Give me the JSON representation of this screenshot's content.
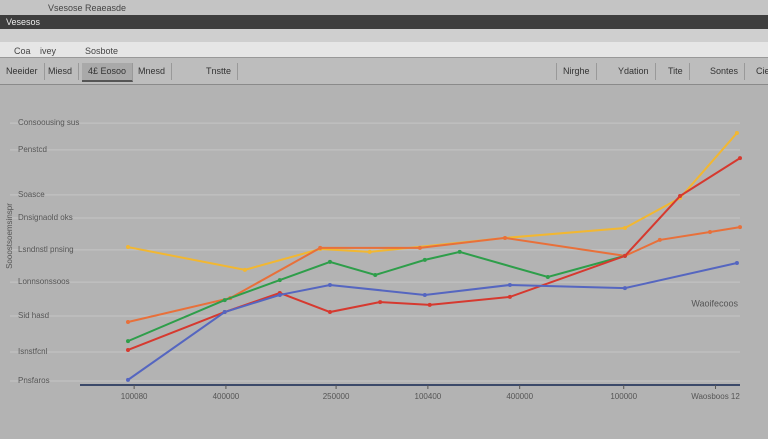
{
  "window": {
    "title": "Vsesose Reaeasde",
    "menu": "Vesesos"
  },
  "address": [
    "Coa",
    "ivey",
    "Sosbote"
  ],
  "tabs": [
    "Neeider",
    "Miesd",
    "4£ Eosoo",
    "Mnesd",
    "Tnstte",
    "Nirghe",
    "Ydation",
    "Tite",
    "Sontes",
    "Cie"
  ],
  "chart_data": {
    "type": "line",
    "y_label": "Sooostsoemsinspr",
    "annotation": "Waoifecoos",
    "xlim": [
      0,
      100
    ],
    "ylim": [
      0,
      100
    ],
    "grid": true,
    "xticks": [
      {
        "value": 1,
        "label": "100080"
      },
      {
        "value": 16,
        "label": "400000"
      },
      {
        "value": 34,
        "label": "250000"
      },
      {
        "value": 49,
        "label": "100400"
      },
      {
        "value": 64,
        "label": "400000"
      },
      {
        "value": 81,
        "label": "100000"
      },
      {
        "value": 96,
        "label": "Waosboos 12"
      }
    ],
    "yticks": [
      {
        "value": 91.9,
        "label": "Consoousing sus"
      },
      {
        "value": 82.5,
        "label": "Penstcd"
      },
      {
        "value": 66.7,
        "label": "Soasce"
      },
      {
        "value": 58.6,
        "label": "Dnsignaold oks"
      },
      {
        "value": 47.4,
        "label": "Lsndnstl pnsing"
      },
      {
        "value": 36.1,
        "label": "Lonnsonssoos"
      },
      {
        "value": 24.2,
        "label": "Sid hasd"
      },
      {
        "value": 11.6,
        "label": "Isnstfcnl"
      },
      {
        "value": 1.4,
        "label": "Pnsfaros"
      }
    ],
    "series": [
      {
        "color": "#f2b731",
        "x": [
          0,
          19.1,
          31.4,
          39.5,
          61.6,
          81.2,
          90.2,
          99.5
        ],
        "values": [
          48.4,
          40.4,
          47.7,
          46.7,
          51.6,
          55.1,
          65.6,
          88.4
        ]
      },
      {
        "color": "#e8703a",
        "x": [
          0,
          16.7,
          31.4,
          47.7,
          61.6,
          81.2,
          86.9,
          95.1,
          100
        ],
        "values": [
          22.1,
          30.5,
          48.1,
          48.1,
          51.6,
          45.3,
          50.9,
          53.7,
          55.4
        ]
      },
      {
        "color": "#2e9e4a",
        "x": [
          0,
          15.8,
          24.8,
          33,
          40.4,
          48.5,
          54.2,
          68.6,
          81.2
        ],
        "values": [
          15.4,
          29.8,
          36.8,
          43.2,
          38.6,
          43.9,
          46.7,
          37.9,
          45.3
        ]
      },
      {
        "color": "#d6392f",
        "x": [
          0,
          15.8,
          24.8,
          33,
          41.2,
          49.3,
          62.4,
          81.2,
          90.2,
          100
        ],
        "values": [
          12.3,
          25.6,
          32.3,
          25.6,
          29.1,
          28.1,
          30.9,
          45.3,
          66.3,
          79.6
        ]
      },
      {
        "color": "#5566c0",
        "x": [
          0,
          15.8,
          24.8,
          33,
          48.5,
          62.4,
          81.2,
          99.5
        ],
        "values": [
          1.8,
          25.6,
          31.6,
          35.1,
          31.6,
          35.1,
          34,
          42.8
        ]
      }
    ]
  }
}
